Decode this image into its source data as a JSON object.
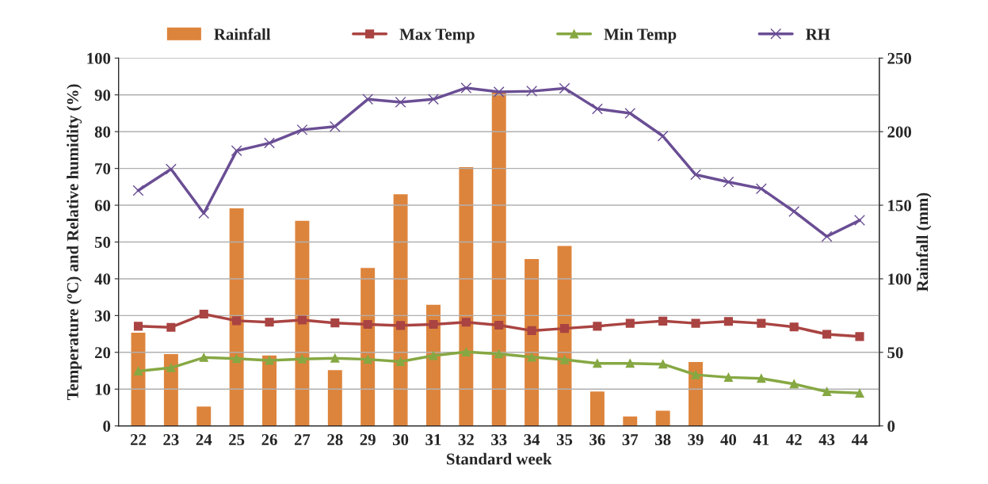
{
  "chart_data": {
    "type": "line",
    "xlabel": "Standard week",
    "ylabel": "Temperature (ºC) and Relative humidity (%)",
    "y2label": "Rainfall (mm)",
    "categories": [
      "22",
      "23",
      "24",
      "25",
      "26",
      "27",
      "28",
      "29",
      "30",
      "31",
      "32",
      "33",
      "34",
      "35",
      "36",
      "37",
      "38",
      "39",
      "40",
      "41",
      "42",
      "43",
      "44"
    ],
    "series": [
      {
        "name": "Rainfall",
        "type": "bar",
        "axis": "y2",
        "color": "#dd843c",
        "values": [
          63,
          48.5,
          12.8,
          147.5,
          47.5,
          139,
          37.5,
          107,
          157,
          82,
          175.5,
          227,
          113,
          122,
          23,
          6,
          10,
          43,
          0,
          0,
          0,
          0,
          0
        ]
      },
      {
        "name": "Max Temp",
        "marker": "square",
        "color": "#a94442",
        "values": [
          27.1,
          26.8,
          30.4,
          28.6,
          28.2,
          28.8,
          28,
          27.6,
          27.3,
          27.6,
          28.2,
          27.4,
          25.9,
          26.5,
          27.1,
          27.9,
          28.5,
          27.9,
          28.4,
          27.9,
          26.9,
          24.9,
          24.3
        ]
      },
      {
        "name": "Min Temp",
        "marker": "triangle",
        "color": "#86a843",
        "values": [
          14.9,
          15.8,
          18.6,
          18.3,
          17.8,
          18.2,
          18.4,
          18.1,
          17.5,
          19.1,
          20.1,
          19.6,
          18.7,
          18.0,
          17.0,
          17.0,
          16.8,
          13.9,
          13.2,
          12.9,
          11.4,
          9.3,
          8.9
        ]
      },
      {
        "name": "RH",
        "marker": "cross",
        "color": "#6a4e94",
        "values": [
          64,
          69.8,
          57.8,
          74.8,
          76.9,
          80.5,
          81.4,
          88.8,
          88,
          88.8,
          91.9,
          90.8,
          91,
          91.8,
          86.2,
          85,
          78.8,
          68.3,
          66.3,
          64.5,
          58.3,
          51.5,
          55.9
        ]
      }
    ],
    "ylim": [
      0,
      100
    ],
    "yticks": [
      0,
      10,
      20,
      30,
      40,
      50,
      60,
      70,
      80,
      90,
      100
    ],
    "y2lim": [
      0,
      250
    ],
    "y2ticks": [
      0,
      50,
      100,
      150,
      200,
      250
    ],
    "grid": "y",
    "legend": "top"
  }
}
